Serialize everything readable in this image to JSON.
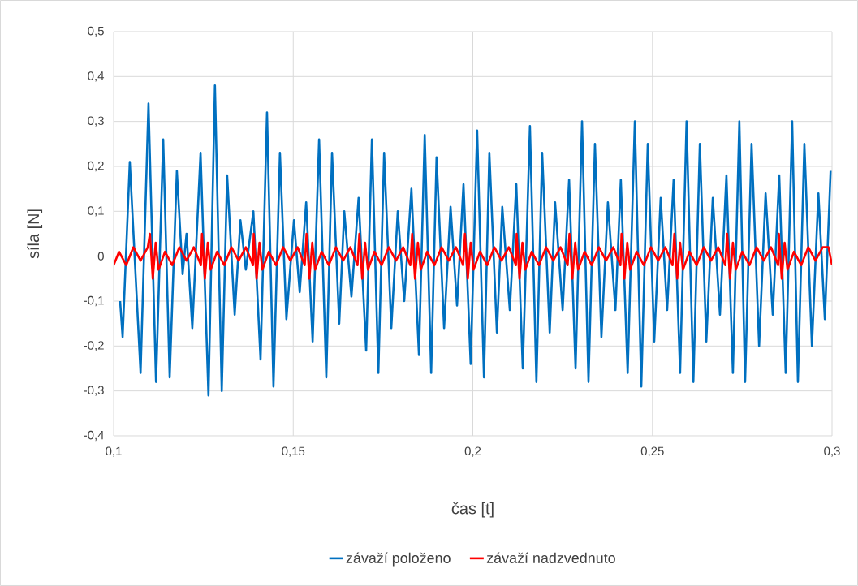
{
  "chart_data": {
    "type": "line",
    "xlabel": "čas [t]",
    "ylabel": "síla [N]",
    "xlim": [
      0.1,
      0.3
    ],
    "ylim": [
      -0.4,
      0.5
    ],
    "xticks": [
      {
        "value": 0.1,
        "label": "0,1"
      },
      {
        "value": 0.15,
        "label": "0,15"
      },
      {
        "value": 0.2,
        "label": "0,2"
      },
      {
        "value": 0.25,
        "label": "0,25"
      },
      {
        "value": 0.3,
        "label": "0,3"
      }
    ],
    "yticks": [
      {
        "value": -0.4,
        "label": "-0,4"
      },
      {
        "value": -0.3,
        "label": "-0,3"
      },
      {
        "value": -0.2,
        "label": "-0,2"
      },
      {
        "value": -0.1,
        "label": "-0,1"
      },
      {
        "value": 0,
        "label": "0"
      },
      {
        "value": 0.1,
        "label": "0,1"
      },
      {
        "value": 0.2,
        "label": "0,2"
      },
      {
        "value": 0.3,
        "label": "0,3"
      },
      {
        "value": 0.4,
        "label": "0,4"
      },
      {
        "value": 0.5,
        "label": "0,5"
      }
    ],
    "grid": true,
    "legend": "bottom",
    "series": [
      {
        "name": "závaží položeno",
        "color": "#0070c0",
        "x": [
          0.1018,
          0.1025,
          0.1045,
          0.1075,
          0.1097,
          0.1118,
          0.1138,
          0.1156,
          0.1176,
          0.1192,
          0.1203,
          0.1219,
          0.1242,
          0.1264,
          0.1282,
          0.1301,
          0.1316,
          0.1337,
          0.1353,
          0.1368,
          0.1389,
          0.1409,
          0.1427,
          0.1445,
          0.1463,
          0.1481,
          0.1502,
          0.1518,
          0.1536,
          0.1554,
          0.1572,
          0.1592,
          0.1608,
          0.1628,
          0.1642,
          0.1662,
          0.1682,
          0.1703,
          0.1719,
          0.1737,
          0.1753,
          0.1773,
          0.1791,
          0.1809,
          0.1829,
          0.185,
          0.1866,
          0.1884,
          0.1899,
          0.192,
          0.1938,
          0.1956,
          0.1974,
          0.1994,
          0.2012,
          0.2031,
          0.2046,
          0.2067,
          0.2082,
          0.2103,
          0.2121,
          0.2139,
          0.2159,
          0.2177,
          0.2193,
          0.2214,
          0.2229,
          0.225,
          0.2268,
          0.2286,
          0.2304,
          0.2322,
          0.234,
          0.2358,
          0.2376,
          0.2397,
          0.2412,
          0.2431,
          0.2451,
          0.2469,
          0.2487,
          0.2505,
          0.2523,
          0.2541,
          0.2559,
          0.2577,
          0.2595,
          0.2614,
          0.2632,
          0.265,
          0.2668,
          0.2688,
          0.2706,
          0.2724,
          0.2742,
          0.2758,
          0.2776,
          0.2797,
          0.2815,
          0.2835,
          0.2853,
          0.2871,
          0.2889,
          0.2905,
          0.2923,
          0.2944,
          0.2962,
          0.298,
          0.2996
        ],
        "values": [
          -0.1,
          -0.18,
          0.21,
          -0.26,
          0.34,
          -0.28,
          0.26,
          -0.27,
          0.19,
          -0.04,
          0.05,
          -0.16,
          0.23,
          -0.31,
          0.38,
          -0.3,
          0.18,
          -0.13,
          0.08,
          -0.03,
          0.1,
          -0.23,
          0.32,
          -0.29,
          0.23,
          -0.14,
          0.08,
          -0.08,
          0.12,
          -0.19,
          0.26,
          -0.27,
          0.23,
          -0.15,
          0.1,
          -0.09,
          0.13,
          -0.21,
          0.26,
          -0.26,
          0.23,
          -0.16,
          0.1,
          -0.1,
          0.15,
          -0.22,
          0.27,
          -0.26,
          0.22,
          -0.16,
          0.11,
          -0.11,
          0.16,
          -0.24,
          0.28,
          -0.27,
          0.23,
          -0.17,
          0.11,
          -0.12,
          0.16,
          -0.25,
          0.29,
          -0.28,
          0.23,
          -0.17,
          0.12,
          -0.12,
          0.17,
          -0.25,
          0.3,
          -0.28,
          0.25,
          -0.18,
          0.12,
          -0.12,
          0.17,
          -0.26,
          0.3,
          -0.29,
          0.25,
          -0.19,
          0.13,
          -0.12,
          0.17,
          -0.26,
          0.3,
          -0.28,
          0.25,
          -0.19,
          0.13,
          -0.13,
          0.18,
          -0.26,
          0.3,
          -0.28,
          0.25,
          -0.2,
          0.14,
          -0.13,
          0.18,
          -0.26,
          0.3,
          -0.28,
          0.25,
          -0.2,
          0.14,
          -0.14,
          0.19
        ]
      },
      {
        "name": "závaží nadzvednuto",
        "color": "#ff0000",
        "x": [
          0.1,
          0.1015,
          0.1035,
          0.1055,
          0.1075,
          0.1095,
          0.1101,
          0.1109,
          0.1117,
          0.1125,
          0.1143,
          0.1163,
          0.1183,
          0.1203,
          0.1223,
          0.1243,
          0.1246,
          0.1254,
          0.1262,
          0.127,
          0.1288,
          0.1308,
          0.1328,
          0.1348,
          0.1368,
          0.1388,
          0.139,
          0.1398,
          0.1406,
          0.1414,
          0.1432,
          0.1452,
          0.1472,
          0.1492,
          0.1512,
          0.1532,
          0.1537,
          0.1545,
          0.1553,
          0.1561,
          0.1579,
          0.1599,
          0.1619,
          0.1639,
          0.1659,
          0.1679,
          0.1684,
          0.1692,
          0.17,
          0.1708,
          0.1726,
          0.1746,
          0.1766,
          0.1786,
          0.1806,
          0.1826,
          0.1831,
          0.1839,
          0.1847,
          0.1855,
          0.1873,
          0.1893,
          0.1913,
          0.1933,
          0.1953,
          0.1973,
          0.1978,
          0.1986,
          0.1994,
          0.2002,
          0.202,
          0.204,
          0.206,
          0.208,
          0.21,
          0.212,
          0.2122,
          0.213,
          0.2138,
          0.2146,
          0.2164,
          0.2184,
          0.2204,
          0.2224,
          0.2244,
          0.2264,
          0.2269,
          0.2277,
          0.2285,
          0.2293,
          0.2311,
          0.2331,
          0.2351,
          0.2371,
          0.2391,
          0.2411,
          0.2414,
          0.2422,
          0.243,
          0.2438,
          0.2456,
          0.2476,
          0.2496,
          0.2516,
          0.2536,
          0.2556,
          0.2561,
          0.2569,
          0.2577,
          0.2585,
          0.2603,
          0.2623,
          0.2643,
          0.2663,
          0.2683,
          0.2703,
          0.2708,
          0.2716,
          0.2724,
          0.2732,
          0.275,
          0.277,
          0.279,
          0.281,
          0.283,
          0.285,
          0.2852,
          0.286,
          0.2868,
          0.2876,
          0.2894,
          0.2914,
          0.2934,
          0.2954,
          0.2974,
          0.299,
          0.3
        ],
        "values": [
          -0.02,
          0.01,
          -0.02,
          0.02,
          -0.01,
          0.02,
          0.05,
          -0.05,
          0.03,
          -0.03,
          0.01,
          -0.02,
          0.02,
          -0.01,
          0.02,
          -0.02,
          0.05,
          -0.05,
          0.03,
          -0.03,
          0.01,
          -0.02,
          0.02,
          -0.01,
          0.02,
          -0.02,
          0.05,
          -0.05,
          0.03,
          -0.03,
          0.01,
          -0.02,
          0.02,
          -0.01,
          0.02,
          -0.02,
          0.05,
          -0.05,
          0.03,
          -0.03,
          0.01,
          -0.02,
          0.02,
          -0.01,
          0.02,
          -0.02,
          0.05,
          -0.05,
          0.03,
          -0.03,
          0.01,
          -0.02,
          0.02,
          -0.01,
          0.02,
          -0.02,
          0.05,
          -0.05,
          0.03,
          -0.03,
          0.01,
          -0.02,
          0.02,
          -0.01,
          0.02,
          -0.02,
          0.05,
          -0.05,
          0.03,
          -0.03,
          0.01,
          -0.02,
          0.02,
          -0.01,
          0.02,
          -0.02,
          0.05,
          -0.05,
          0.03,
          -0.03,
          0.01,
          -0.02,
          0.02,
          -0.01,
          0.02,
          -0.02,
          0.05,
          -0.05,
          0.03,
          -0.03,
          0.01,
          -0.02,
          0.02,
          -0.01,
          0.02,
          -0.02,
          0.05,
          -0.05,
          0.03,
          -0.03,
          0.01,
          -0.02,
          0.02,
          -0.01,
          0.02,
          -0.02,
          0.05,
          -0.05,
          0.03,
          -0.03,
          0.01,
          -0.02,
          0.02,
          -0.01,
          0.02,
          -0.02,
          0.05,
          -0.05,
          0.03,
          -0.03,
          0.01,
          -0.02,
          0.02,
          -0.01,
          0.02,
          -0.02,
          0.05,
          -0.05,
          0.03,
          -0.03,
          0.01,
          -0.02,
          0.02,
          -0.01,
          0.02,
          0.02,
          -0.02
        ]
      }
    ]
  }
}
